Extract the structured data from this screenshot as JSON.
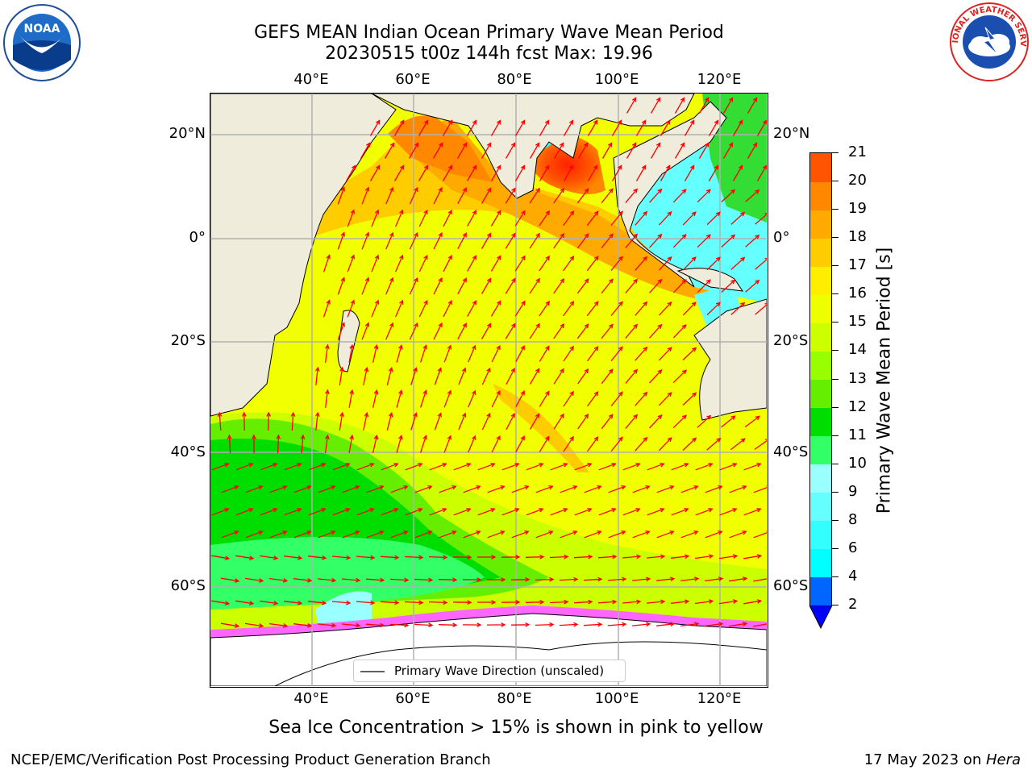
{
  "title": {
    "line1": "GEFS MEAN Indian Ocean Primary Wave Mean Period",
    "line2": "20230515 t00z 144h fcst   Max: 19.96"
  },
  "logos": {
    "left": {
      "icon": "noaa-logo",
      "text": "NOAA"
    },
    "right": {
      "icon": "national-weather-service-logo",
      "text": "NATIONAL WEATHER SERVICE"
    }
  },
  "axes": {
    "lon_labels": [
      "40°E",
      "60°E",
      "80°E",
      "100°E",
      "120°E"
    ],
    "lat_labels": [
      "20°N",
      "0°",
      "20°S",
      "40°S",
      "60°S"
    ]
  },
  "map": {
    "land_color": "#efecdc",
    "ice_color": "#ffffff",
    "vector_color": "#ff0000",
    "grid": true
  },
  "legend": {
    "label": "Primary Wave Direction (unscaled)"
  },
  "colorbar": {
    "label": "Primary Wave Mean Period [s]",
    "ticks": [
      "2",
      "4",
      "6",
      "8",
      "9",
      "10",
      "11",
      "12",
      "13",
      "14",
      "15",
      "16",
      "17",
      "18",
      "19",
      "20",
      "21"
    ],
    "colors": [
      "#0066ff",
      "#00ffff",
      "#33ffff",
      "#66ffff",
      "#99ffff",
      "#33ff66",
      "#00dd00",
      "#66ee00",
      "#99ff00",
      "#ccff00",
      "#eeff00",
      "#ffee00",
      "#ffcc00",
      "#ffaa00",
      "#ff8800",
      "#ff5500",
      "#ff2200",
      "#ff0000"
    ],
    "extend_color": "#0000ff"
  },
  "caption": "Sea Ice Concentration > 15% is shown in pink to yellow",
  "footer": {
    "left": "NCEP/EMC/Verification Post Processing Product Generation Branch",
    "right_prefix": "17 May 2023 on ",
    "right_italic": "Hera"
  }
}
